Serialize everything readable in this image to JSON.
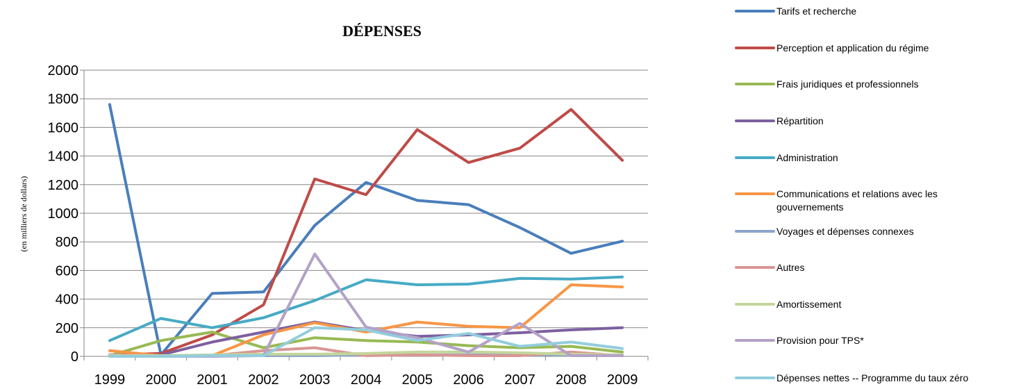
{
  "chart_data": {
    "type": "line",
    "title": "DÉPENSES",
    "xlabel": "",
    "ylabel": "(en milliers de dollars)",
    "ylim": [
      0,
      2000
    ],
    "yticks": [
      "0",
      "200",
      "400",
      "600",
      "800",
      "1000",
      "1200",
      "1400",
      "1600",
      "1800",
      "2000"
    ],
    "categories": [
      "1999",
      "2000",
      "2001",
      "2002",
      "2003",
      "2004",
      "2005",
      "2006",
      "2007",
      "2008",
      "2009"
    ],
    "grid": true,
    "legend_position": "right",
    "series": [
      {
        "name": "Tarifs et recherche",
        "color": "#4A7EBB",
        "values": [
          1760,
          10,
          440,
          450,
          915,
          1215,
          1090,
          1060,
          900,
          720,
          805
        ]
      },
      {
        "name": "Perception et application du régime",
        "color": "#BE4B48",
        "values": [
          10,
          20,
          150,
          360,
          1240,
          1130,
          1585,
          1355,
          1455,
          1725,
          1370
        ]
      },
      {
        "name": "Frais juridiques et professionnels",
        "color": "#98B954",
        "values": [
          5,
          110,
          170,
          60,
          130,
          110,
          100,
          75,
          60,
          70,
          30
        ]
      },
      {
        "name": "Répartition",
        "color": "#7D60A0",
        "values": [
          5,
          10,
          100,
          170,
          240,
          180,
          140,
          150,
          165,
          185,
          200
        ]
      },
      {
        "name": "Administration",
        "color": "#46AAC5",
        "values": [
          110,
          265,
          200,
          270,
          390,
          535,
          500,
          505,
          545,
          540,
          555
        ]
      },
      {
        "name": "Communications et relations avec les gouvernements",
        "color": "#F79646",
        "values": [
          40,
          5,
          5,
          150,
          235,
          170,
          240,
          210,
          200,
          500,
          485
        ]
      },
      {
        "name": "Voyages et dépenses connexes",
        "color": "#8EA5CB",
        "values": [
          5,
          5,
          5,
          5,
          5,
          10,
          10,
          10,
          10,
          10,
          10
        ]
      },
      {
        "name": "Autres",
        "color": "#D99694",
        "values": [
          10,
          5,
          5,
          40,
          60,
          5,
          10,
          5,
          5,
          30,
          5
        ]
      },
      {
        "name": "Amortissement",
        "color": "#C3D69B",
        "values": [
          5,
          5,
          10,
          15,
          15,
          20,
          30,
          30,
          25,
          15,
          10
        ]
      },
      {
        "name": "Provision pour TPS*",
        "color": "#B3A2C7",
        "values": [
          0,
          0,
          0,
          5,
          715,
          205,
          130,
          30,
          230,
          5,
          5
        ]
      },
      {
        "name": "Dépenses nettes -- Programme du taux zéro",
        "color": "#93CDDD",
        "values": [
          0,
          0,
          5,
          5,
          200,
          185,
          110,
          160,
          70,
          100,
          55
        ]
      }
    ]
  }
}
